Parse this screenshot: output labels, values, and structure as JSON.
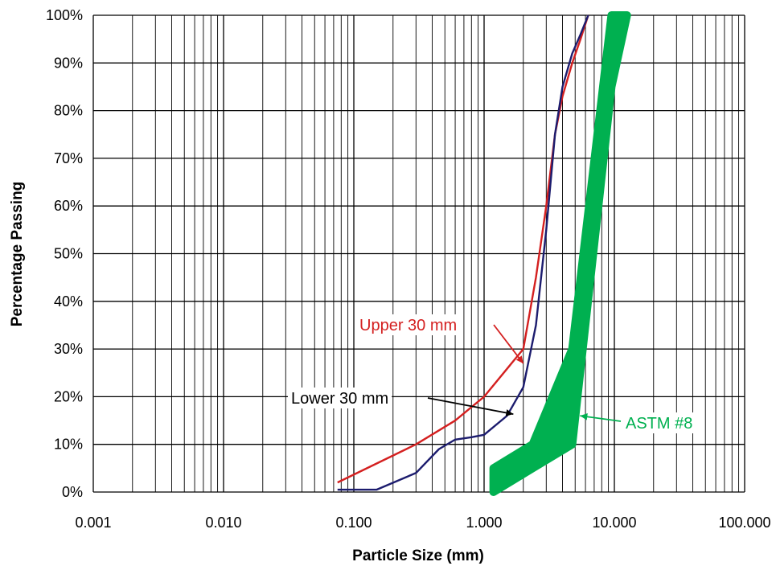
{
  "chart_data": {
    "type": "line",
    "xlabel": "Particle Size (mm)",
    "ylabel": "Percentage Passing",
    "x_scale": "log",
    "xlim": [
      0.001,
      100
    ],
    "ylim": [
      0,
      100
    ],
    "grid": true,
    "x_tick_values": [
      0.001,
      0.01,
      0.1,
      1,
      10,
      100
    ],
    "x_tick_labels": [
      "0.001",
      "0.010",
      "0.100",
      "1.000",
      "10.000",
      "100.000"
    ],
    "y_tick_values": [
      0,
      10,
      20,
      30,
      40,
      50,
      60,
      70,
      80,
      90,
      100
    ],
    "y_tick_labels": [
      "0%",
      "10%",
      "20%",
      "30%",
      "40%",
      "50%",
      "60%",
      "70%",
      "80%",
      "90%",
      "100%"
    ],
    "series": [
      {
        "name": "Upper 30 mm",
        "color": "#d42020",
        "points": [
          [
            0.075,
            2
          ],
          [
            0.3,
            10
          ],
          [
            0.6,
            15
          ],
          [
            1.0,
            20
          ],
          [
            2.0,
            30
          ],
          [
            2.5,
            45
          ],
          [
            3.0,
            60
          ],
          [
            3.5,
            75
          ],
          [
            4.0,
            83
          ],
          [
            4.75,
            90
          ],
          [
            5.5,
            95
          ],
          [
            6.3,
            100
          ]
        ]
      },
      {
        "name": "Lower 30 mm",
        "color": "#1c1c6e",
        "points": [
          [
            0.075,
            0.5
          ],
          [
            0.15,
            0.5
          ],
          [
            0.3,
            4
          ],
          [
            0.45,
            9
          ],
          [
            0.6,
            11
          ],
          [
            0.8,
            11.5
          ],
          [
            1.0,
            12
          ],
          [
            1.5,
            16
          ],
          [
            2.0,
            22
          ],
          [
            2.5,
            35
          ],
          [
            3.0,
            55
          ],
          [
            3.5,
            75
          ],
          [
            4.0,
            85
          ],
          [
            4.75,
            92
          ],
          [
            5.5,
            96
          ],
          [
            6.3,
            100
          ]
        ]
      },
      {
        "name": "ASTM #8",
        "color": "#00b050",
        "band": true,
        "lower": [
          [
            1.18,
            0
          ],
          [
            2.36,
            5
          ],
          [
            4.75,
            10
          ],
          [
            9.5,
            85
          ],
          [
            12.5,
            100
          ]
        ],
        "upper": [
          [
            1.18,
            5
          ],
          [
            2.36,
            10
          ],
          [
            4.75,
            30
          ],
          [
            9.5,
            100
          ],
          [
            12.5,
            100
          ]
        ]
      }
    ],
    "annotations": [
      {
        "text": "Upper 30 mm",
        "color": "#d42020",
        "points_to_x": 2.0,
        "points_to_y": 30
      },
      {
        "text": "Lower 30 mm",
        "color": "#000000",
        "points_to_x": 1.8,
        "points_to_y": 16
      },
      {
        "text": "ASTM #8",
        "color": "#00b050",
        "points_to_x": 5.3,
        "points_to_y": 16
      }
    ]
  }
}
